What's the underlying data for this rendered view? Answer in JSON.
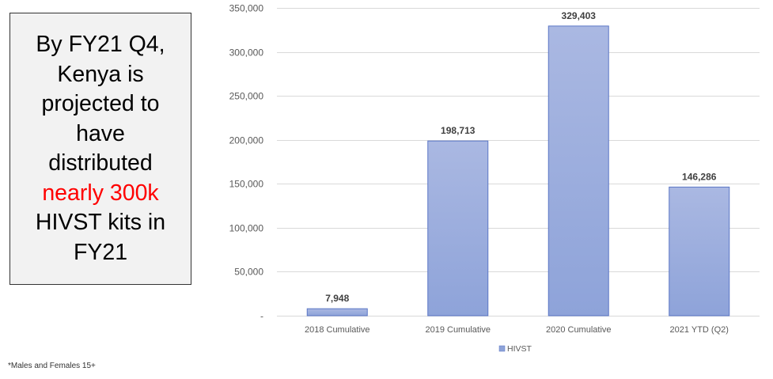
{
  "callout": {
    "line1": "By FY21 Q4,",
    "line2": "Kenya is",
    "line3": "projected to",
    "line4": "have",
    "line5": "distributed",
    "line6": "nearly 300k",
    "line7": "HIVST kits in",
    "line8": "FY21",
    "highlight_color": "#ff0000"
  },
  "footnote": "*Males and Females 15+",
  "chart_data": {
    "type": "bar",
    "categories": [
      "2018 Cumulative",
      "2019 Cumulative",
      "2020 Cumulative",
      "2021 YTD (Q2)"
    ],
    "series": [
      {
        "name": "HIVST",
        "values": [
          7948,
          198713,
          329403,
          146286
        ],
        "data_labels": [
          "7,948",
          "198,713",
          "329,403",
          "146,286"
        ],
        "color": "#8ea3d9"
      }
    ],
    "y_ticks": [
      0,
      50000,
      100000,
      150000,
      200000,
      250000,
      300000,
      350000
    ],
    "y_tick_labels": [
      "-",
      "50,000",
      "100,000",
      "150,000",
      "200,000",
      "250,000",
      "300,000",
      "350,000"
    ],
    "ylim": [
      0,
      350000
    ],
    "grid": true,
    "legend_position": "bottom",
    "title": "",
    "xlabel": "",
    "ylabel": ""
  }
}
